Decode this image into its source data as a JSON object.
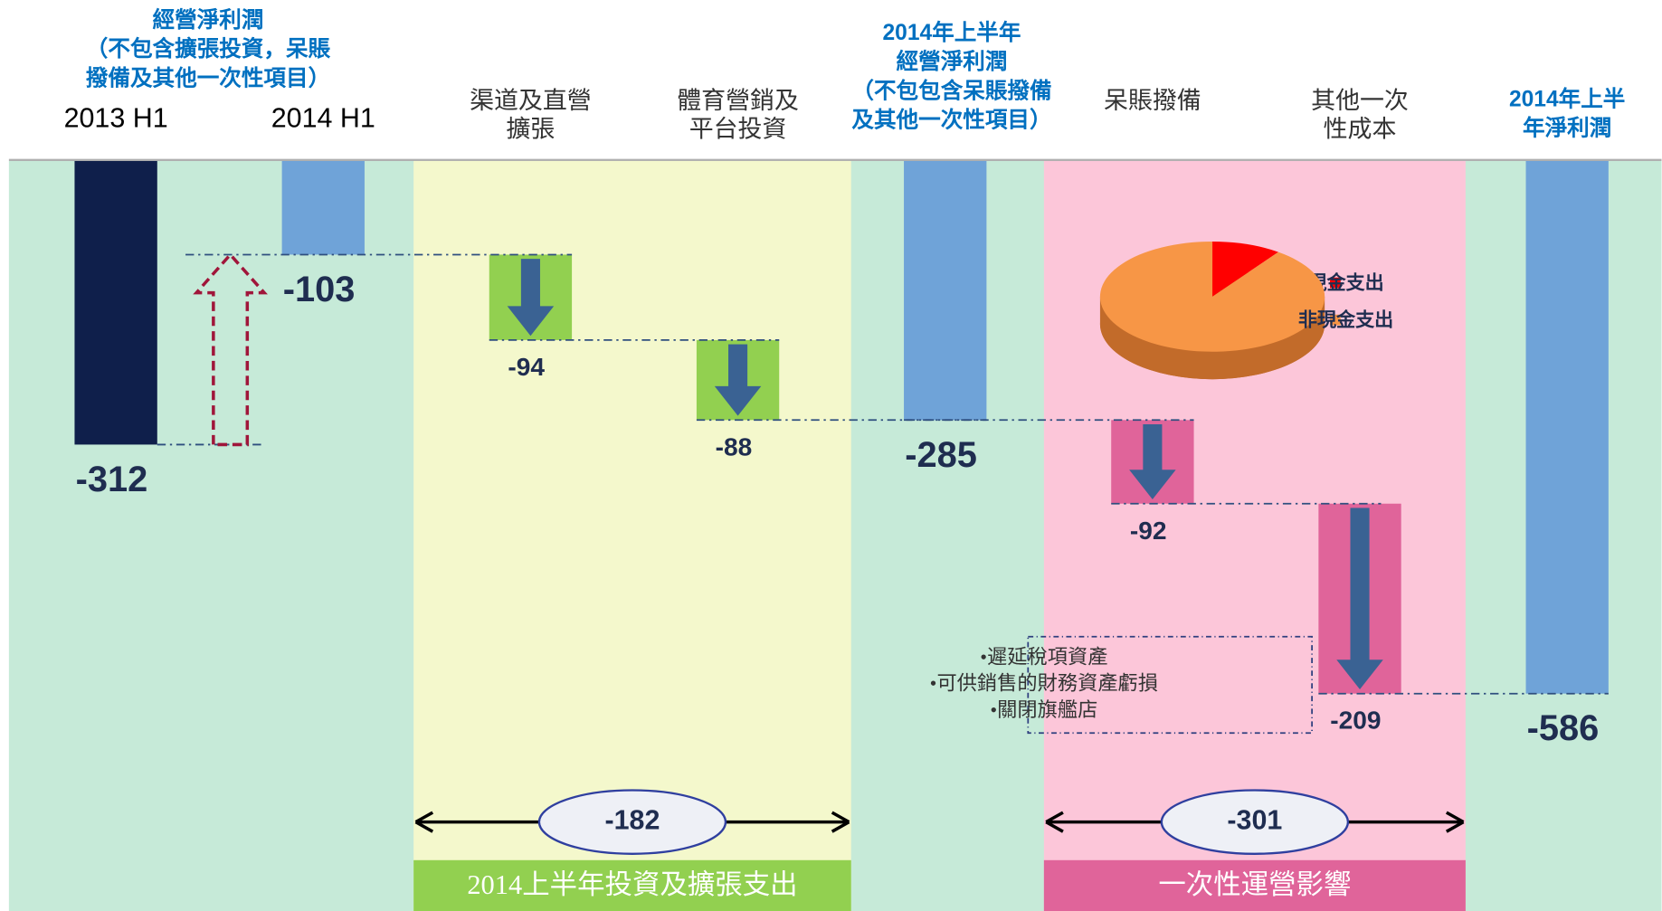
{
  "chart_data": {
    "type": "waterfall",
    "header_group": [
      "經營淨利潤",
      "（不包含擴張投資，呆賬",
      "撥備及其他一次性項目）"
    ],
    "categories": [
      [
        "2013 H1"
      ],
      [
        "2014 H1"
      ],
      [
        "渠道及直營",
        "擴張"
      ],
      [
        "體育營銷及",
        "平台投資"
      ],
      [
        "2014年上半年",
        "經營淨利潤",
        "（不包包含呆賬撥備",
        "及其他一次性項目）"
      ],
      [
        "呆賬撥備"
      ],
      [
        "其他一次",
        "性成本"
      ],
      [
        "2014年上半",
        "年淨利潤"
      ]
    ],
    "values": [
      -312,
      -103,
      -94,
      -88,
      -285,
      -92,
      -209,
      -586
    ],
    "measure": [
      "absolute",
      "absolute",
      "relative",
      "relative",
      "absolute",
      "relative",
      "relative",
      "absolute"
    ],
    "colors": [
      "#0f1f4b",
      "#6fa3d8",
      "#92d050",
      "#92d050",
      "#6fa3d8",
      "#e0649a",
      "#e0649a",
      "#6fa3d8"
    ],
    "groups": [
      {
        "label": "2014上半年投資及擴張支出",
        "total": -182,
        "color": "#92d050",
        "background": "#f4f8cc"
      },
      {
        "label": "一次性運營影響",
        "total": -301,
        "color": "#e0649a",
        "background": "#fcc6d9"
      }
    ],
    "pie": {
      "series": [
        {
          "name": "現金支出",
          "value": 10,
          "color": "#ff0000"
        },
        {
          "name": "非現金支出",
          "value": 90,
          "color": "#f79646"
        }
      ]
    },
    "note": [
      "•遲延稅項資產",
      "•可供銷售的財務資產虧損",
      "•關閉旗艦店"
    ]
  }
}
